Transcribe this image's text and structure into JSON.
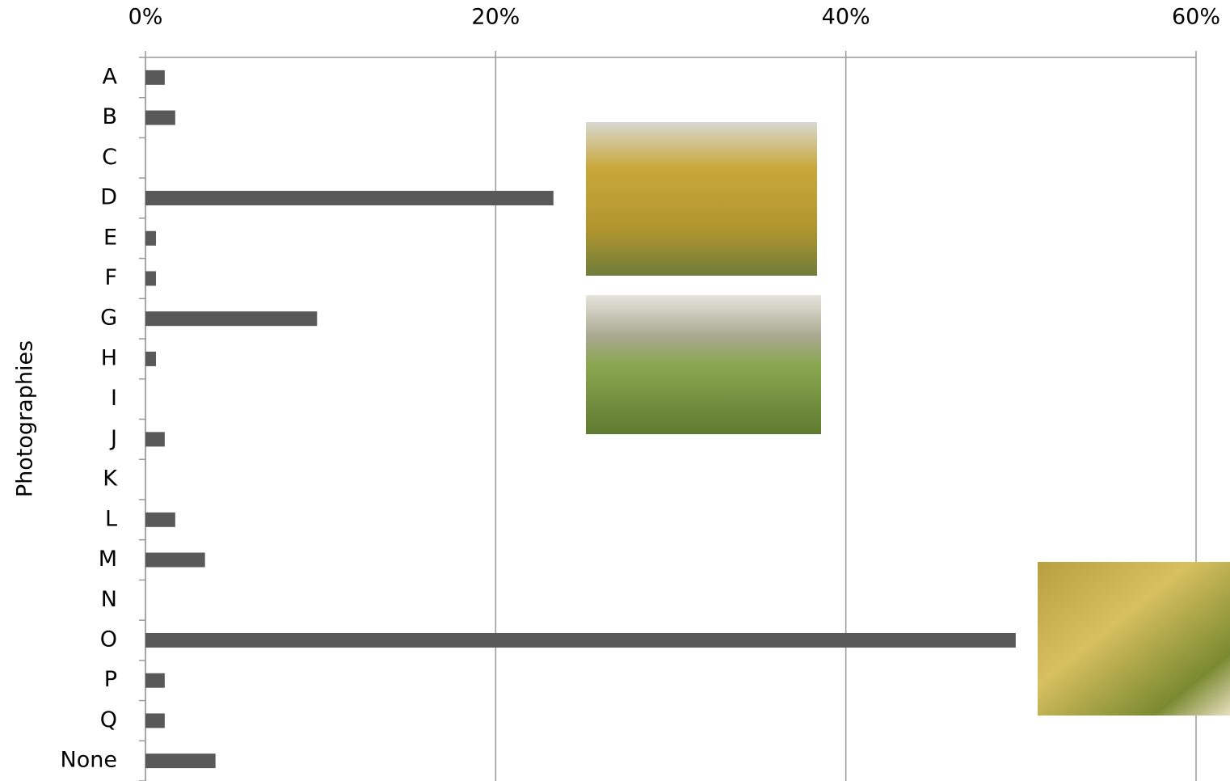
{
  "chart_data": {
    "type": "bar",
    "orientation": "horizontal",
    "y_label": "Photographies",
    "categories": [
      "A",
      "B",
      "C",
      "D",
      "E",
      "F",
      "G",
      "H",
      "I",
      "J",
      "K",
      "L",
      "M",
      "N",
      "O",
      "P",
      "Q",
      "None"
    ],
    "values": [
      1.1,
      1.7,
      0,
      23.3,
      0.6,
      0.6,
      9.8,
      0.6,
      0,
      1.1,
      0,
      1.7,
      3.4,
      0,
      49.7,
      1.1,
      1.1,
      4.0
    ],
    "color": "#595959",
    "xlim": [
      0,
      60
    ],
    "xticks": [
      {
        "value": 0,
        "label": "0%"
      },
      {
        "value": 20,
        "label": "20%"
      },
      {
        "value": 40,
        "label": "40%"
      },
      {
        "value": 60,
        "label": "60%"
      }
    ],
    "grid": true
  }
}
